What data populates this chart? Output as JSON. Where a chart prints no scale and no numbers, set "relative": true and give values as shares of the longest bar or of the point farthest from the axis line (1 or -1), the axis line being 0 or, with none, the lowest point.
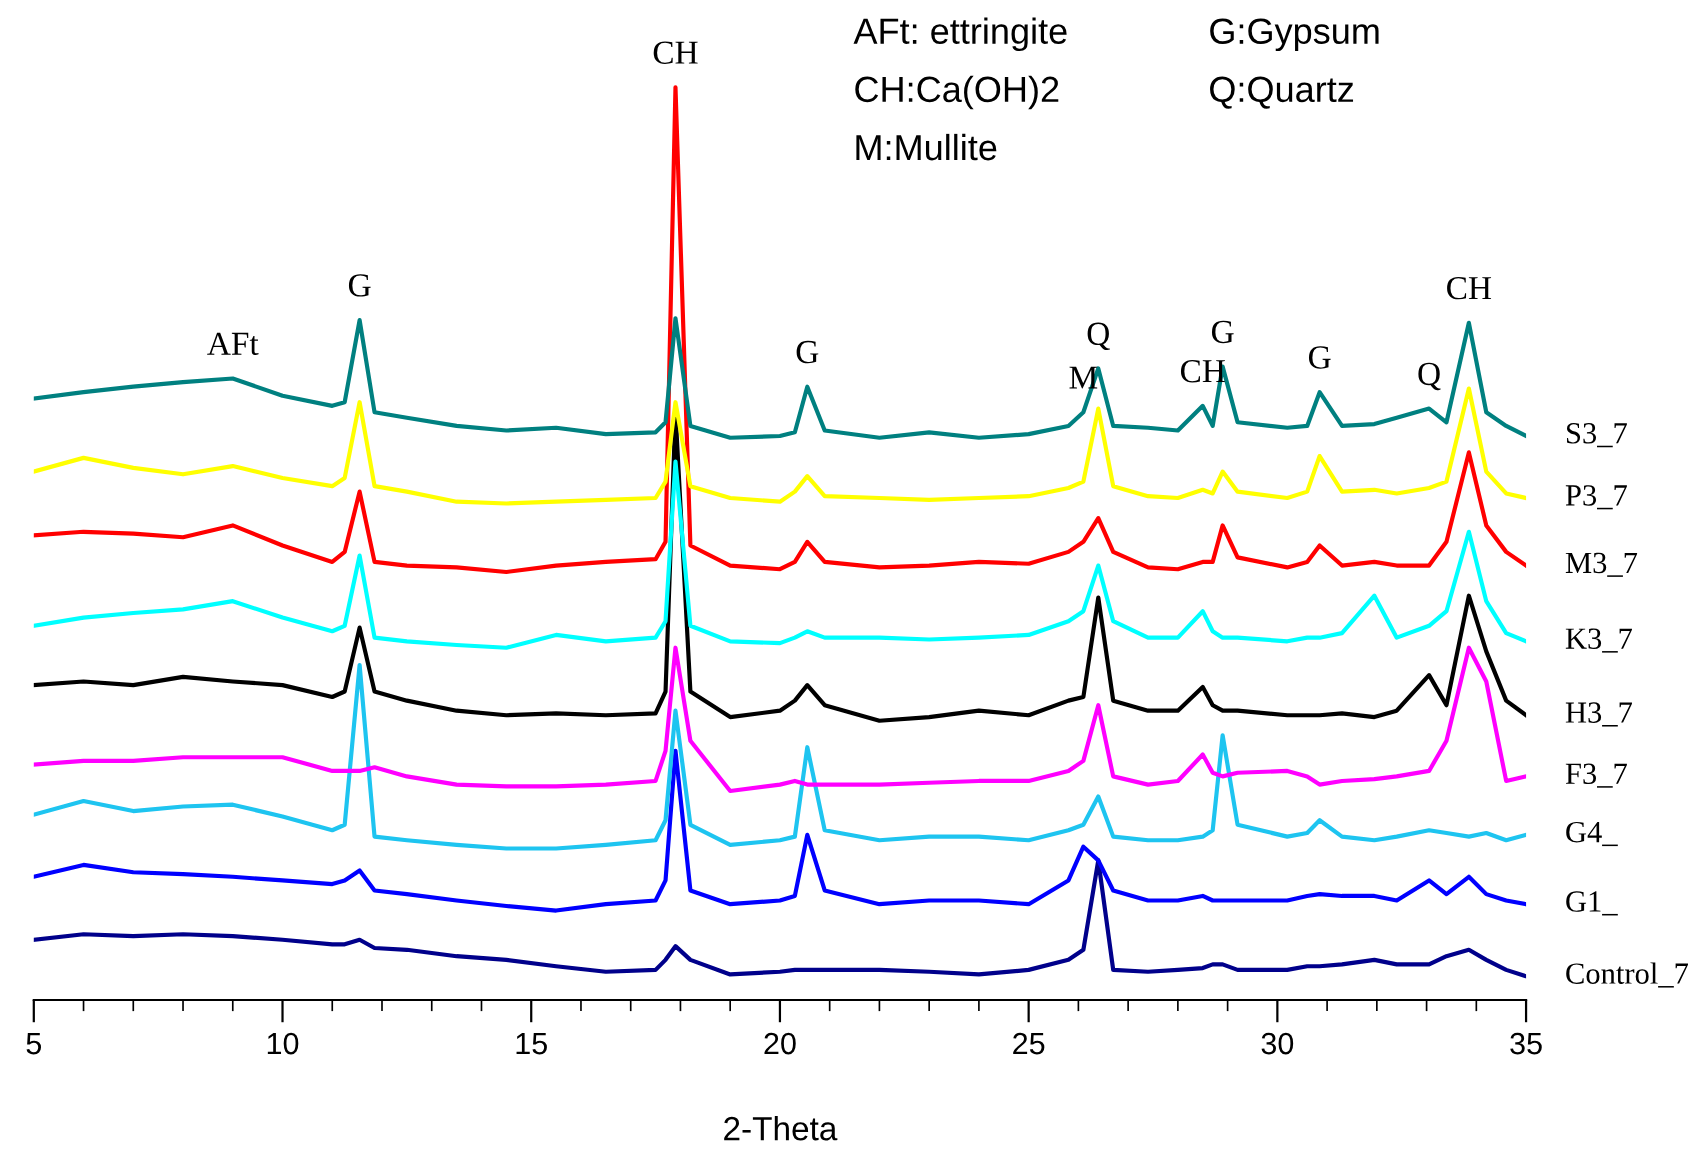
{
  "chart_data": {
    "type": "line",
    "relative": true,
    "xlabel": "2-Theta",
    "xlim": [
      5,
      35
    ],
    "xticks": [
      5,
      10,
      15,
      20,
      25,
      30,
      35
    ],
    "grid": false,
    "marker": "none",
    "line_style": "solid",
    "tick_labels": "x",
    "x": [
      5,
      6,
      7,
      8,
      9,
      10,
      11,
      11.25,
      11.55,
      11.85,
      12.5,
      13.5,
      14.5,
      15.5,
      16.5,
      17.5,
      17.7,
      17.9,
      18.2,
      19,
      20,
      20.3,
      20.55,
      20.9,
      22,
      23,
      24,
      25,
      25.8,
      26.1,
      26.4,
      26.7,
      27.4,
      28.0,
      28.5,
      28.7,
      28.9,
      29.2,
      30.2,
      30.6,
      30.85,
      31.3,
      31.95,
      32.4,
      33.05,
      33.4,
      33.85,
      34.2,
      34.6,
      35
    ],
    "series": [
      {
        "name": "S3_7",
        "color": "#008080",
        "values": [
          0.659,
          0.666,
          0.672,
          0.677,
          0.681,
          0.662,
          0.651,
          0.655,
          0.745,
          0.644,
          0.638,
          0.629,
          0.624,
          0.627,
          0.62,
          0.622,
          0.633,
          0.747,
          0.629,
          0.616,
          0.618,
          0.622,
          0.672,
          0.624,
          0.616,
          0.622,
          0.616,
          0.62,
          0.629,
          0.644,
          0.692,
          0.629,
          0.627,
          0.624,
          0.651,
          0.629,
          0.694,
          0.633,
          0.627,
          0.629,
          0.666,
          0.629,
          0.631,
          0.638,
          0.648,
          0.633,
          0.742,
          0.644,
          0.629,
          0.618
        ]
      },
      {
        "name": "P3_7",
        "color": "#ffff00",
        "values": [
          0.579,
          0.594,
          0.583,
          0.576,
          0.585,
          0.572,
          0.563,
          0.572,
          0.655,
          0.563,
          0.557,
          0.546,
          0.544,
          0.546,
          0.548,
          0.55,
          0.568,
          0.655,
          0.563,
          0.55,
          0.546,
          0.557,
          0.574,
          0.552,
          0.55,
          0.548,
          0.55,
          0.552,
          0.561,
          0.568,
          0.648,
          0.563,
          0.552,
          0.55,
          0.559,
          0.555,
          0.579,
          0.557,
          0.55,
          0.557,
          0.596,
          0.557,
          0.559,
          0.555,
          0.561,
          0.568,
          0.67,
          0.579,
          0.555,
          0.55
        ]
      },
      {
        "name": "M3_7",
        "color": "#ff0000",
        "values": [
          0.509,
          0.513,
          0.511,
          0.507,
          0.52,
          0.498,
          0.48,
          0.491,
          0.557,
          0.48,
          0.476,
          0.474,
          0.469,
          0.476,
          0.48,
          0.483,
          0.502,
          1.0,
          0.498,
          0.476,
          0.472,
          0.48,
          0.502,
          0.48,
          0.474,
          0.476,
          0.48,
          0.478,
          0.491,
          0.502,
          0.528,
          0.491,
          0.474,
          0.472,
          0.48,
          0.48,
          0.52,
          0.485,
          0.474,
          0.48,
          0.498,
          0.476,
          0.48,
          0.476,
          0.476,
          0.502,
          0.6,
          0.52,
          0.491,
          0.476
        ]
      },
      {
        "name": "K3_7",
        "color": "#00ffff",
        "values": [
          0.41,
          0.419,
          0.424,
          0.428,
          0.437,
          0.419,
          0.404,
          0.41,
          0.487,
          0.397,
          0.393,
          0.389,
          0.386,
          0.4,
          0.393,
          0.397,
          0.415,
          0.59,
          0.41,
          0.393,
          0.391,
          0.397,
          0.404,
          0.397,
          0.397,
          0.395,
          0.397,
          0.4,
          0.415,
          0.426,
          0.476,
          0.415,
          0.397,
          0.397,
          0.426,
          0.404,
          0.397,
          0.397,
          0.393,
          0.397,
          0.397,
          0.402,
          0.443,
          0.397,
          0.41,
          0.426,
          0.513,
          0.437,
          0.402,
          0.393
        ]
      },
      {
        "name": "H3_7",
        "color": "#000000",
        "values": [
          0.345,
          0.349,
          0.345,
          0.354,
          0.349,
          0.345,
          0.332,
          0.338,
          0.408,
          0.338,
          0.328,
          0.317,
          0.312,
          0.314,
          0.312,
          0.314,
          0.338,
          0.644,
          0.338,
          0.31,
          0.317,
          0.328,
          0.345,
          0.323,
          0.306,
          0.31,
          0.317,
          0.312,
          0.328,
          0.332,
          0.441,
          0.328,
          0.317,
          0.317,
          0.343,
          0.323,
          0.317,
          0.317,
          0.312,
          0.312,
          0.312,
          0.314,
          0.31,
          0.317,
          0.356,
          0.323,
          0.443,
          0.382,
          0.328,
          0.312
        ]
      },
      {
        "name": "F3_7",
        "color": "#ff00ff",
        "values": [
          0.258,
          0.262,
          0.262,
          0.266,
          0.266,
          0.266,
          0.251,
          0.251,
          0.251,
          0.255,
          0.245,
          0.236,
          0.234,
          0.234,
          0.236,
          0.24,
          0.273,
          0.386,
          0.284,
          0.229,
          0.236,
          0.24,
          0.236,
          0.236,
          0.236,
          0.238,
          0.24,
          0.24,
          0.251,
          0.262,
          0.323,
          0.245,
          0.236,
          0.24,
          0.269,
          0.249,
          0.245,
          0.249,
          0.251,
          0.245,
          0.236,
          0.24,
          0.242,
          0.245,
          0.251,
          0.284,
          0.386,
          0.349,
          0.24,
          0.245
        ]
      },
      {
        "name": "G4_",
        "color": "#1ec4f0",
        "values": [
          0.203,
          0.218,
          0.207,
          0.212,
          0.214,
          0.201,
          0.186,
          0.192,
          0.367,
          0.179,
          0.175,
          0.17,
          0.166,
          0.166,
          0.17,
          0.175,
          0.197,
          0.317,
          0.192,
          0.17,
          0.175,
          0.179,
          0.277,
          0.186,
          0.175,
          0.179,
          0.179,
          0.175,
          0.186,
          0.192,
          0.223,
          0.179,
          0.175,
          0.175,
          0.179,
          0.186,
          0.29,
          0.192,
          0.179,
          0.183,
          0.197,
          0.179,
          0.175,
          0.179,
          0.186,
          0.183,
          0.179,
          0.183,
          0.175,
          0.181
        ]
      },
      {
        "name": "G1_",
        "color": "#0000ff",
        "values": [
          0.135,
          0.148,
          0.14,
          0.138,
          0.135,
          0.131,
          0.127,
          0.131,
          0.142,
          0.12,
          0.116,
          0.109,
          0.103,
          0.098,
          0.105,
          0.109,
          0.131,
          0.273,
          0.12,
          0.105,
          0.109,
          0.114,
          0.181,
          0.12,
          0.105,
          0.109,
          0.109,
          0.105,
          0.131,
          0.168,
          0.153,
          0.12,
          0.109,
          0.109,
          0.114,
          0.109,
          0.109,
          0.109,
          0.109,
          0.114,
          0.116,
          0.114,
          0.114,
          0.109,
          0.131,
          0.116,
          0.135,
          0.116,
          0.109,
          0.105
        ]
      },
      {
        "name": "Control_7",
        "color": "#00008b",
        "values": [
          0.066,
          0.072,
          0.07,
          0.072,
          0.07,
          0.066,
          0.061,
          0.061,
          0.066,
          0.057,
          0.055,
          0.048,
          0.044,
          0.037,
          0.031,
          0.033,
          0.044,
          0.059,
          0.044,
          0.028,
          0.031,
          0.033,
          0.033,
          0.033,
          0.033,
          0.031,
          0.028,
          0.033,
          0.044,
          0.055,
          0.153,
          0.033,
          0.031,
          0.033,
          0.035,
          0.039,
          0.039,
          0.033,
          0.033,
          0.037,
          0.037,
          0.039,
          0.044,
          0.039,
          0.039,
          0.048,
          0.055,
          0.044,
          0.033,
          0.026
        ]
      }
    ],
    "annotations": [
      {
        "text": "AFt",
        "x": 9,
        "y": 0.681
      },
      {
        "text": "G",
        "x": 11.55,
        "y": 0.745
      },
      {
        "text": "CH",
        "x": 17.9,
        "y": 1.0
      },
      {
        "text": "G",
        "x": 20.55,
        "y": 0.672
      },
      {
        "text": "M",
        "x": 26.1,
        "y": 0.644
      },
      {
        "text": "Q",
        "x": 26.4,
        "y": 0.692
      },
      {
        "text": "CH",
        "x": 28.5,
        "y": 0.651
      },
      {
        "text": "G",
        "x": 28.9,
        "y": 0.694
      },
      {
        "text": "G",
        "x": 30.85,
        "y": 0.666
      },
      {
        "text": "Q",
        "x": 33.05,
        "y": 0.648
      },
      {
        "text": "CH",
        "x": 33.85,
        "y": 0.742
      },
      "AFt: ettringite",
      "G:Gypsum",
      "CH:Ca(OH)2",
      "Q:Quartz",
      "M:Mullite"
    ]
  }
}
